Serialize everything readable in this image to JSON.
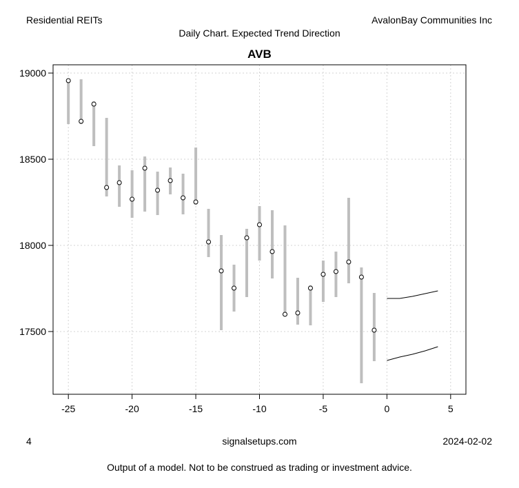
{
  "header": {
    "left": "Residential REITs",
    "right": "AvalonBay Communities Inc",
    "subtitle": "Daily Chart. Expected Trend Direction"
  },
  "footer": {
    "left": "4",
    "center": "signalsetups.com",
    "right": "2024-02-02",
    "disclaimer": "Output of a model. Not to be construed as trading or investment advice."
  },
  "chart_data": {
    "type": "line",
    "title": "AVB",
    "xlim": [
      -26.2,
      6.2
    ],
    "ylim": [
      17136,
      19048
    ],
    "xticks": [
      -25,
      -20,
      -15,
      -10,
      -5,
      0,
      5
    ],
    "yticks": [
      17500,
      18000,
      18500,
      19000
    ],
    "grid": true,
    "colors": {
      "range_bar": "#bebebe",
      "close_marker": "#000000",
      "forecast": "#000000",
      "grid": "#d3d3d3"
    },
    "bars": {
      "x": [
        -25,
        -24,
        -23,
        -22,
        -21,
        -20,
        -19,
        -18,
        -17,
        -16,
        -15,
        -14,
        -13,
        -12,
        -11,
        -10,
        -9,
        -8,
        -7,
        -6,
        -5,
        -4,
        -3,
        -2,
        -1
      ],
      "high": [
        18960,
        18964,
        18836,
        18740,
        18464,
        18436,
        18516,
        18428,
        18452,
        18416,
        18568,
        18212,
        18060,
        17888,
        18096,
        18228,
        18204,
        18116,
        17812,
        17768,
        17912,
        17964,
        18276,
        17872,
        17724
      ],
      "low": [
        18704,
        18704,
        18576,
        18284,
        18224,
        18160,
        18196,
        18176,
        18296,
        18180,
        18236,
        17932,
        17508,
        17616,
        17700,
        17912,
        17808,
        17600,
        17540,
        17536,
        17672,
        17700,
        17780,
        17200,
        17328
      ],
      "close": [
        18956,
        18720,
        18820,
        18336,
        18364,
        18268,
        18448,
        18320,
        18376,
        18276,
        18252,
        18020,
        17852,
        17752,
        18044,
        18120,
        17964,
        17600,
        17608,
        17752,
        17832,
        17848,
        17904,
        17816,
        17508
      ]
    },
    "forecast": {
      "x": [
        0,
        1,
        2,
        3,
        4
      ],
      "upper": [
        17692,
        17692,
        17704,
        17720,
        17736
      ],
      "lower": [
        17332,
        17352,
        17368,
        17388,
        17412
      ]
    }
  }
}
